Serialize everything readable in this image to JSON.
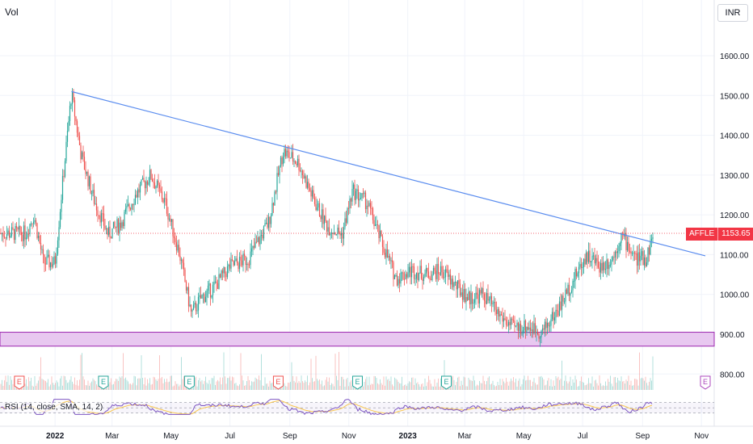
{
  "header": {
    "volume_label": "Vol",
    "currency": "INR"
  },
  "indicator": {
    "rsi_label": "RSI (14, close, SMA, 14, 2)"
  },
  "price_marker": {
    "symbol": "AFFLE",
    "value": "1153.65"
  },
  "colors": {
    "up": "#26a69a",
    "down": "#ef5350",
    "trendline": "#5b8def",
    "support_fill": "#e8c8f0",
    "support_border": "#9c27b0",
    "rsi_line": "#7e57c2",
    "rsi_sma": "#f9c74f",
    "price_line": "#f23645"
  },
  "chart_data": {
    "type": "candlestick",
    "y_axis_ticks": [
      "1600.00",
      "1500.00",
      "1400.00",
      "1300.00",
      "1200.00",
      "1100.00",
      "1000.00",
      "900.00",
      "800.00"
    ],
    "x_axis_ticks": [
      "2022",
      "Mar",
      "May",
      "Jul",
      "Sep",
      "Nov",
      "2023",
      "Mar",
      "May",
      "Jul",
      "Sep",
      "Nov"
    ],
    "ylim": [
      720,
      1680
    ],
    "last_price": 1153.65,
    "support_zone": [
      870,
      905
    ],
    "trendline": {
      "start": {
        "x": "2022-01-18",
        "y": 1510
      },
      "end": {
        "x": "2023-11-05",
        "y": 1097
      }
    },
    "price_path": [
      [
        "2021-12-01",
        1150
      ],
      [
        "2021-12-10",
        1200
      ],
      [
        "2021-12-20",
        1080
      ],
      [
        "2022-01-01",
        1080
      ],
      [
        "2022-01-08",
        1260
      ],
      [
        "2022-01-18",
        1505
      ],
      [
        "2022-01-28",
        1350
      ],
      [
        "2022-02-10",
        1240
      ],
      [
        "2022-02-25",
        1150
      ],
      [
        "2022-03-10",
        1180
      ],
      [
        "2022-03-25",
        1250
      ],
      [
        "2022-04-10",
        1300
      ],
      [
        "2022-04-25",
        1230
      ],
      [
        "2022-05-10",
        1100
      ],
      [
        "2022-05-22",
        950
      ],
      [
        "2022-06-01",
        990
      ],
      [
        "2022-06-15",
        1020
      ],
      [
        "2022-07-01",
        1070
      ],
      [
        "2022-07-20",
        1090
      ],
      [
        "2022-08-10",
        1180
      ],
      [
        "2022-08-25",
        1360
      ],
      [
        "2022-09-10",
        1330
      ],
      [
        "2022-09-25",
        1240
      ],
      [
        "2022-10-10",
        1170
      ],
      [
        "2022-10-25",
        1150
      ],
      [
        "2022-11-05",
        1260
      ],
      [
        "2022-11-20",
        1230
      ],
      [
        "2022-12-05",
        1130
      ],
      [
        "2022-12-20",
        1040
      ],
      [
        "2023-01-05",
        1060
      ],
      [
        "2023-01-20",
        1050
      ],
      [
        "2023-02-05",
        1060
      ],
      [
        "2023-02-20",
        1020
      ],
      [
        "2023-03-05",
        990
      ],
      [
        "2023-03-20",
        1000
      ],
      [
        "2023-04-05",
        950
      ],
      [
        "2023-04-20",
        915
      ],
      [
        "2023-05-05",
        920
      ],
      [
        "2023-05-20",
        905
      ],
      [
        "2023-06-05",
        960
      ],
      [
        "2023-06-20",
        1030
      ],
      [
        "2023-07-05",
        1100
      ],
      [
        "2023-07-20",
        1070
      ],
      [
        "2023-08-01",
        1090
      ],
      [
        "2023-08-10",
        1150
      ],
      [
        "2023-08-25",
        1090
      ],
      [
        "2023-09-05",
        1090
      ],
      [
        "2023-09-12",
        1153.65
      ]
    ],
    "earnings_markers": [
      {
        "date": "2021-11-25",
        "type": "down"
      },
      {
        "date": "2022-02-20",
        "type": "up"
      },
      {
        "date": "2022-05-20",
        "type": "up"
      },
      {
        "date": "2022-08-20",
        "type": "down"
      },
      {
        "date": "2022-11-10",
        "type": "up"
      },
      {
        "date": "2023-02-10",
        "type": "up"
      },
      {
        "date": "2023-11-05",
        "type": "future"
      }
    ],
    "rsi_guides": [
      70,
      50,
      30
    ]
  }
}
